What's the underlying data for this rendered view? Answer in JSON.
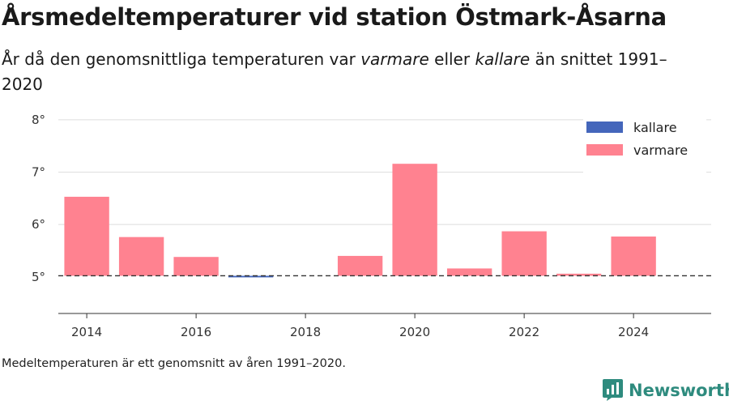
{
  "title": "Årsmedeltemperaturer vid station Östmark-Åsarna",
  "subtitle": {
    "part1": "År då den genomsnittliga temperaturen var ",
    "warm_word": "varmare",
    "part2": " eller ",
    "cold_word": "kallare",
    "part3": " än snittet 1991–2020"
  },
  "footnote": "Medeltemperaturen är ett genomsnitt av åren 1991–2020.",
  "brand": "Newsworthy",
  "brand_icon": "newsworthy-logo-icon",
  "colors": {
    "kallare": "#4466bb",
    "varmare": "#ff8290"
  },
  "chart_data": {
    "type": "bar",
    "x": [
      2014,
      2015,
      2016,
      2017,
      2018,
      2019,
      2020,
      2021,
      2022,
      2023,
      2024
    ],
    "values": [
      6.53,
      5.76,
      5.38,
      4.99,
      null,
      5.4,
      7.16,
      5.16,
      5.87,
      5.06,
      5.77
    ],
    "baseline": 5.02,
    "ylim": [
      4.3,
      8.2
    ],
    "yticks": [
      5,
      6,
      7,
      8
    ],
    "ytick_labels": [
      "5°",
      "6°",
      "7°",
      "8°"
    ],
    "xticks": [
      2014,
      2016,
      2018,
      2020,
      2022,
      2024
    ],
    "xtick_labels": [
      "2014",
      "2016",
      "2018",
      "2020",
      "2022",
      "2024"
    ],
    "legend": [
      {
        "key": "kallare",
        "label": "kallare"
      },
      {
        "key": "varmare",
        "label": "varmare"
      }
    ],
    "legend_position": "top-right",
    "grid": true
  }
}
